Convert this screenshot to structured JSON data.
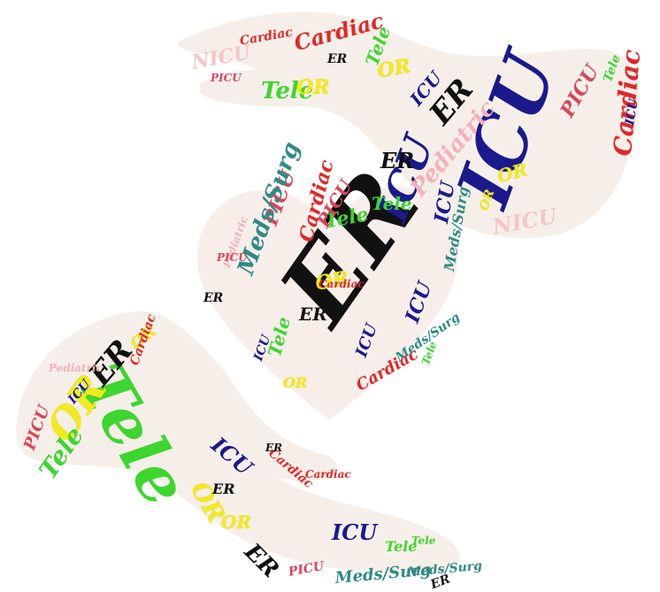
{
  "palette": {
    "er": "#111111",
    "icu": "#1a1a8c",
    "tele": "#3dd62f",
    "or": "#f2ea1f",
    "cardiac": "#e02828",
    "picu": "#d9455a",
    "meds": "#2f8a86",
    "pediatric": "#f4b0bb",
    "nicu": "#f4c7c7",
    "shape_fill": "#f7f2ee"
  },
  "words": {
    "er": "ER",
    "icu": "ICU",
    "tele": "Tele",
    "or": "OR",
    "cardiac": "Cardiac",
    "picu": "PICU",
    "meds_surg": "Meds/Surg",
    "pediatric": "Pediatric",
    "nicu": "NICU"
  }
}
